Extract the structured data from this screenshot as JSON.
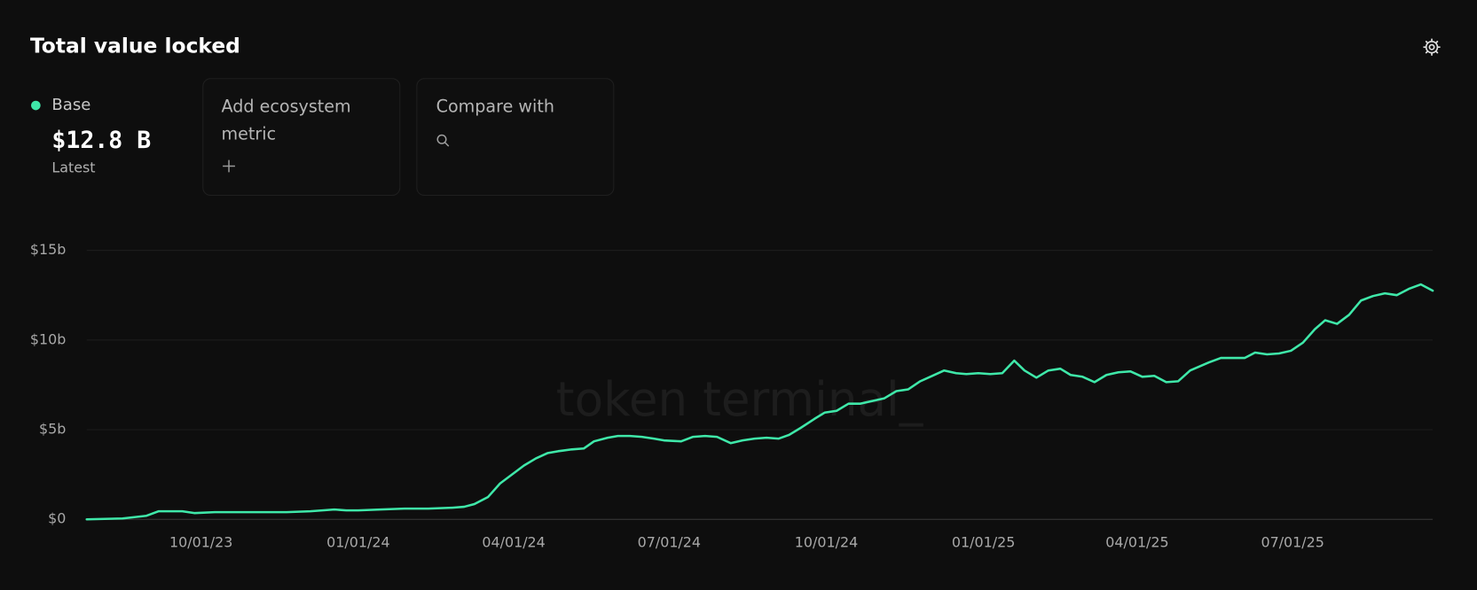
{
  "header": {
    "title": "Total value locked"
  },
  "summary": {
    "value": "$12.8 B",
    "note": "Latest"
  },
  "controls": {
    "add_metric": "Add ecosystem metric",
    "compare": "Compare with"
  },
  "watermark": "token terminal_",
  "chart_data": {
    "type": "line",
    "x": [
      "07/26/23",
      "08/16/23",
      "08/30/23",
      "09/06/23",
      "09/20/23",
      "09/27/23",
      "10/09/23",
      "10/23/23",
      "11/06/23",
      "11/20/23",
      "12/04/23",
      "12/18/23",
      "12/25/23",
      "01/01/24",
      "01/14/24",
      "01/28/24",
      "02/11/24",
      "02/25/24",
      "03/03/24",
      "03/09/24",
      "03/17/24",
      "03/24/24",
      "03/31/24",
      "04/07/24",
      "04/14/24",
      "04/21/24",
      "04/27/24",
      "05/05/24",
      "05/12/24",
      "05/18/24",
      "05/26/24",
      "06/01/24",
      "06/08/24",
      "06/15/24",
      "06/22/24",
      "06/28/24",
      "07/08/24",
      "07/15/24",
      "07/22/24",
      "07/29/24",
      "08/06/24",
      "08/13/24",
      "08/20/24",
      "08/27/24",
      "09/03/24",
      "09/09/24",
      "09/16/24",
      "09/24/24",
      "09/30/24",
      "10/07/24",
      "10/14/24",
      "10/21/24",
      "10/28/24",
      "11/04/24",
      "11/11/24",
      "11/18/24",
      "11/25/24",
      "12/02/24",
      "12/09/24",
      "12/16/24",
      "12/22/24",
      "12/29/24",
      "01/05/25",
      "01/12/25",
      "01/19/25",
      "01/25/25",
      "02/01/25",
      "02/08/25",
      "02/15/25",
      "02/21/25",
      "02/28/25",
      "03/07/25",
      "03/14/25",
      "03/21/25",
      "03/28/25",
      "04/04/25",
      "04/11/25",
      "04/18/25",
      "04/25/25",
      "05/02/25",
      "05/13/25",
      "05/20/25",
      "06/03/25",
      "06/09/25",
      "06/16/25",
      "06/23/25",
      "06/30/25",
      "07/07/25",
      "07/14/25",
      "07/20/25",
      "07/27/25",
      "08/03/25",
      "08/10/25",
      "08/17/25",
      "08/24/25",
      "08/31/25",
      "09/07/25",
      "09/14/25",
      "09/21/25"
    ],
    "series": [
      {
        "name": "Base",
        "color": "#3fe8a9",
        "values": [
          0,
          0.05,
          0.2,
          0.45,
          0.45,
          0.35,
          0.4,
          0.4,
          0.4,
          0.4,
          0.45,
          0.55,
          0.5,
          0.5,
          0.55,
          0.6,
          0.6,
          0.65,
          0.7,
          0.85,
          1.25,
          2.0,
          2.5,
          3.0,
          3.4,
          3.7,
          3.8,
          3.9,
          3.95,
          4.35,
          4.55,
          4.65,
          4.65,
          4.6,
          4.5,
          4.4,
          4.35,
          4.6,
          4.65,
          4.6,
          4.25,
          4.4,
          4.5,
          4.55,
          4.5,
          4.7,
          5.1,
          5.6,
          5.95,
          6.05,
          6.45,
          6.45,
          6.6,
          6.75,
          7.15,
          7.25,
          7.7,
          8.0,
          8.3,
          8.15,
          8.1,
          8.15,
          8.1,
          8.15,
          8.85,
          8.3,
          7.9,
          8.3,
          8.4,
          8.05,
          7.95,
          7.65,
          8.05,
          8.2,
          8.25,
          7.95,
          8.0,
          7.65,
          7.7,
          8.3,
          8.75,
          9.0,
          9.0,
          9.3,
          9.2,
          9.25,
          9.4,
          9.85,
          10.6,
          11.1,
          10.9,
          11.4,
          12.2,
          12.45,
          12.6,
          12.5,
          12.85,
          13.1,
          12.75
        ]
      }
    ],
    "xlim": [
      "07/26/23",
      "09/21/25"
    ],
    "xticks": [
      "10/01/23",
      "01/01/24",
      "04/01/24",
      "07/01/24",
      "10/01/24",
      "01/01/25",
      "04/01/25",
      "07/01/25"
    ],
    "ylim": [
      0,
      15
    ],
    "yticks": [
      {
        "value": 0,
        "label": "$0"
      },
      {
        "value": 5,
        "label": "$5b"
      },
      {
        "value": 10,
        "label": "$10b"
      },
      {
        "value": 15,
        "label": "$15b"
      }
    ],
    "grid": true
  }
}
